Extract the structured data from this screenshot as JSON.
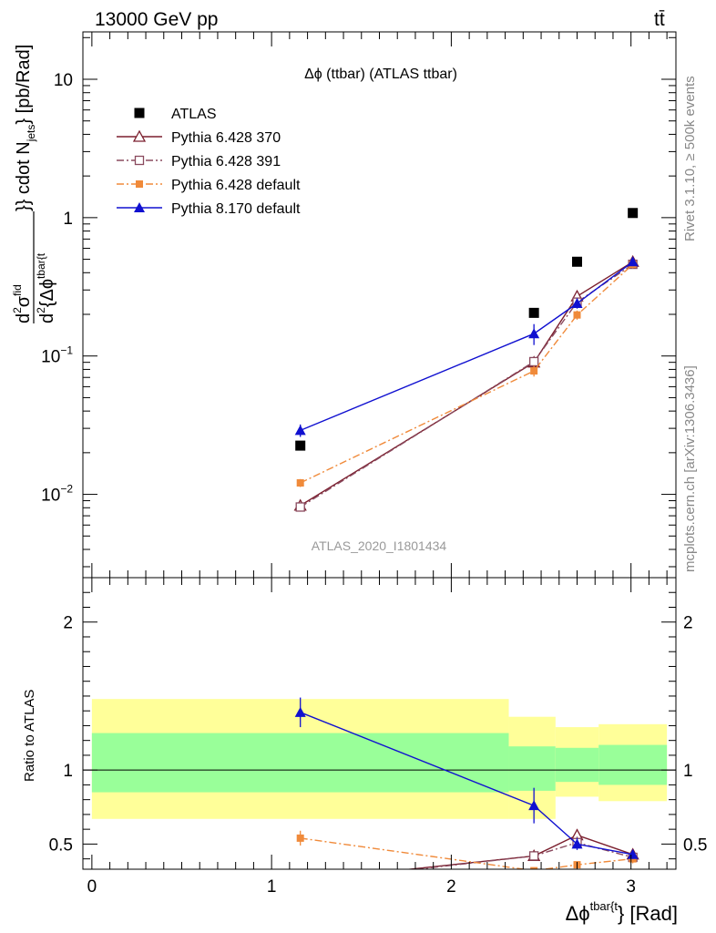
{
  "header": {
    "energy_label": "13000 GeV pp",
    "process_label": "tt̄"
  },
  "side_labels": {
    "rivet": "Rivet 3.1.10, ≥ 500k events",
    "mcplots": "mcplots.cern.ch [arXiv:1306.3436]"
  },
  "chart_data": [
    {
      "type": "line",
      "title": "Δϕ (ttbar) (ATLAS ttbar)",
      "watermark": "ATLAS_2020_I1801434",
      "ylabel_parts": {
        "num_base": "d",
        "num_sup1": "2",
        "num_sigma": "σ",
        "num_sup2": "fid",
        "den_base": "d",
        "den_sup": "2",
        "den_var": "{Δϕ",
        "den_var_sup": "tbar{t"
      },
      "ylabel_rest": "}} cdot N",
      "ylabel_sub": "jets",
      "ylabel_unit": "} [pb/Rad]",
      "yscale": "log",
      "ylim": [
        0.0025,
        22
      ],
      "xlim": [
        -0.05,
        3.25
      ],
      "yticks": [
        {
          "value": 0.01,
          "base": "10",
          "exp": "−2"
        },
        {
          "value": 0.1,
          "base": "10",
          "exp": "−1"
        },
        {
          "value": 1,
          "base": "1",
          "exp": ""
        },
        {
          "value": 10,
          "base": "10",
          "exp": ""
        }
      ],
      "legend_position": "top-left",
      "series": [
        {
          "name": "ATLAS",
          "color": "#000000",
          "marker": "square-filled",
          "line": "none",
          "x": [
            1.16,
            2.46,
            2.7,
            3.01
          ],
          "y": [
            0.0225,
            0.205,
            0.48,
            1.08
          ],
          "err": [
            0,
            0,
            0,
            0
          ]
        },
        {
          "name": "Pythia 6.428 370",
          "color": "#7b1f2e",
          "marker": "triangle-open",
          "line": "solid",
          "x": [
            1.16,
            2.46,
            2.7,
            3.01
          ],
          "y": [
            0.0083,
            0.09,
            0.27,
            0.48
          ],
          "err": [
            0.0006,
            0.008,
            0.02,
            0.03
          ]
        },
        {
          "name": "Pythia 6.428 391",
          "color": "#8a4a5e",
          "marker": "square-open",
          "line": "dashdot",
          "x": [
            1.16,
            2.46,
            2.7,
            3.01
          ],
          "y": [
            0.0081,
            0.091,
            0.245,
            0.46
          ],
          "err": [
            0.0006,
            0.008,
            0.02,
            0.03
          ]
        },
        {
          "name": "Pythia 6.428 default",
          "color": "#f08a3a",
          "marker": "square-filled-small",
          "line": "dashdot",
          "x": [
            1.16,
            2.46,
            2.7,
            3.01
          ],
          "y": [
            0.0121,
            0.078,
            0.198,
            0.46
          ],
          "err": [
            0.0008,
            0.007,
            0.015,
            0.03
          ]
        },
        {
          "name": "Pythia 8.170 default",
          "color": "#1010d0",
          "marker": "triangle-filled",
          "line": "solid",
          "x": [
            1.16,
            2.46,
            2.7,
            3.01
          ],
          "y": [
            0.029,
            0.145,
            0.24,
            0.48
          ],
          "err": [
            0.003,
            0.025,
            0.02,
            0.03
          ]
        }
      ]
    },
    {
      "type": "line",
      "ylabel": "Ratio to ATLAS",
      "xlabel_base": "Δϕ",
      "xlabel_sup": "tbar{t",
      "xlabel_unit": "} [Rad]",
      "ylim": [
        0.33,
        2.3
      ],
      "xlim": [
        -0.05,
        3.25
      ],
      "xticks": [
        0,
        1,
        2,
        3
      ],
      "yticks": [
        0.5,
        1,
        2
      ],
      "bands": [
        {
          "x0": 0.0,
          "x1": 2.32,
          "yellow": [
            0.67,
            1.48
          ],
          "green": [
            0.85,
            1.25
          ]
        },
        {
          "x0": 2.32,
          "x1": 2.58,
          "yellow": [
            0.67,
            1.36
          ],
          "green": [
            0.86,
            1.16
          ]
        },
        {
          "x0": 2.58,
          "x1": 2.82,
          "yellow": [
            0.82,
            1.29
          ],
          "green": [
            0.92,
            1.15
          ]
        },
        {
          "x0": 2.82,
          "x1": 3.2,
          "yellow": [
            0.79,
            1.31
          ],
          "green": [
            0.9,
            1.17
          ]
        }
      ],
      "series": [
        {
          "name": "Pythia 6.428 370",
          "x": [
            1.16,
            2.46,
            2.7,
            3.01
          ],
          "y": [
            0.25,
            0.42,
            0.56,
            0.43
          ],
          "err": [
            0,
            0.03,
            0.04,
            0.03
          ]
        },
        {
          "name": "Pythia 6.428 391",
          "x": [
            1.16,
            2.46,
            2.7,
            3.01
          ],
          "y": [
            0.24,
            0.42,
            0.51,
            0.41
          ],
          "err": [
            0,
            0.03,
            0.04,
            0.03
          ]
        },
        {
          "name": "Pythia 6.428 default",
          "x": [
            1.16,
            2.46,
            2.7,
            3.01
          ],
          "y": [
            0.54,
            0.32,
            0.36,
            0.4
          ],
          "err": [
            0.05,
            0,
            0.02,
            0.03
          ]
        },
        {
          "name": "Pythia 8.170 default",
          "x": [
            1.16,
            2.46,
            2.7,
            3.01
          ],
          "y": [
            1.39,
            0.76,
            0.5,
            0.43
          ],
          "err": [
            0.1,
            0.12,
            0.04,
            0.03
          ]
        }
      ]
    }
  ]
}
